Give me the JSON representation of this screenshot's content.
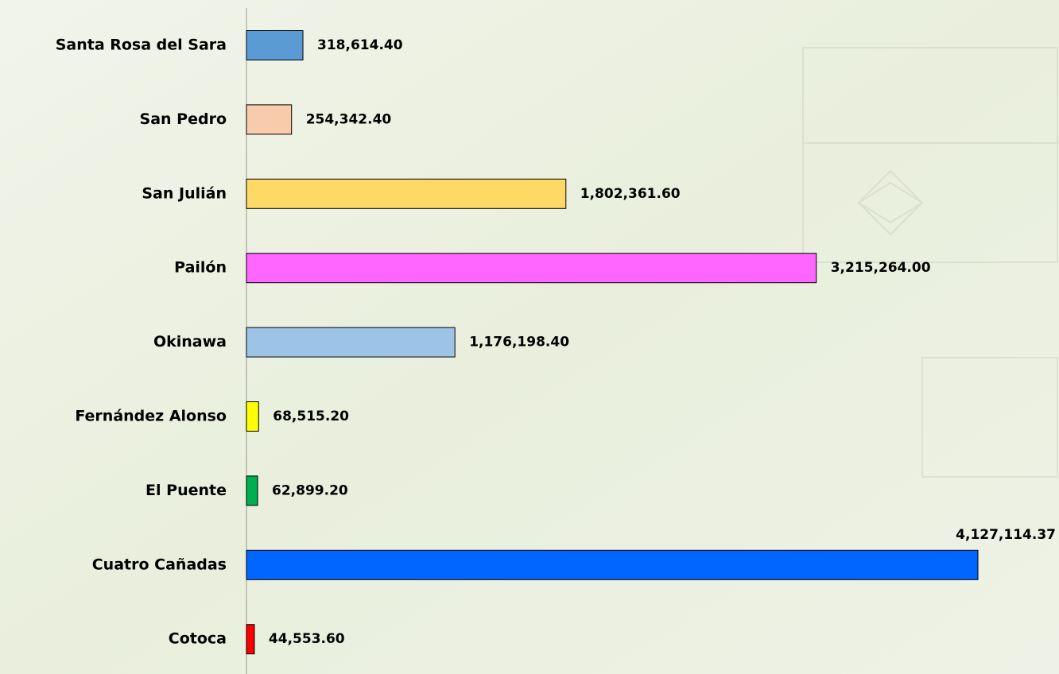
{
  "chart_data": {
    "type": "hbar",
    "categories": [
      "Santa Rosa del Sara",
      "San Pedro",
      "San Julián",
      "Pailón",
      "Okinawa",
      "Fernández Alonso",
      "El Puente",
      "Cuatro Cañadas",
      "Cotoca"
    ],
    "values": [
      318614.4,
      254342.4,
      1802361.6,
      3215264.0,
      1176198.4,
      68515.2,
      62899.2,
      4127114.37,
      44553.6
    ],
    "value_labels": [
      "318,614.40",
      "254,342.40",
      "1,802,361.60",
      "3,215,264.00",
      "1,176,198.40",
      "68,515.20",
      "62,899.20",
      "4,127,114.37",
      "44,553.60"
    ],
    "colors": [
      "#5b9bd5",
      "#f8cbad",
      "#ffd966",
      "#ff66ff",
      "#9dc3e6",
      "#ffff00",
      "#00b050",
      "#0066ff",
      "#ff0000"
    ]
  }
}
